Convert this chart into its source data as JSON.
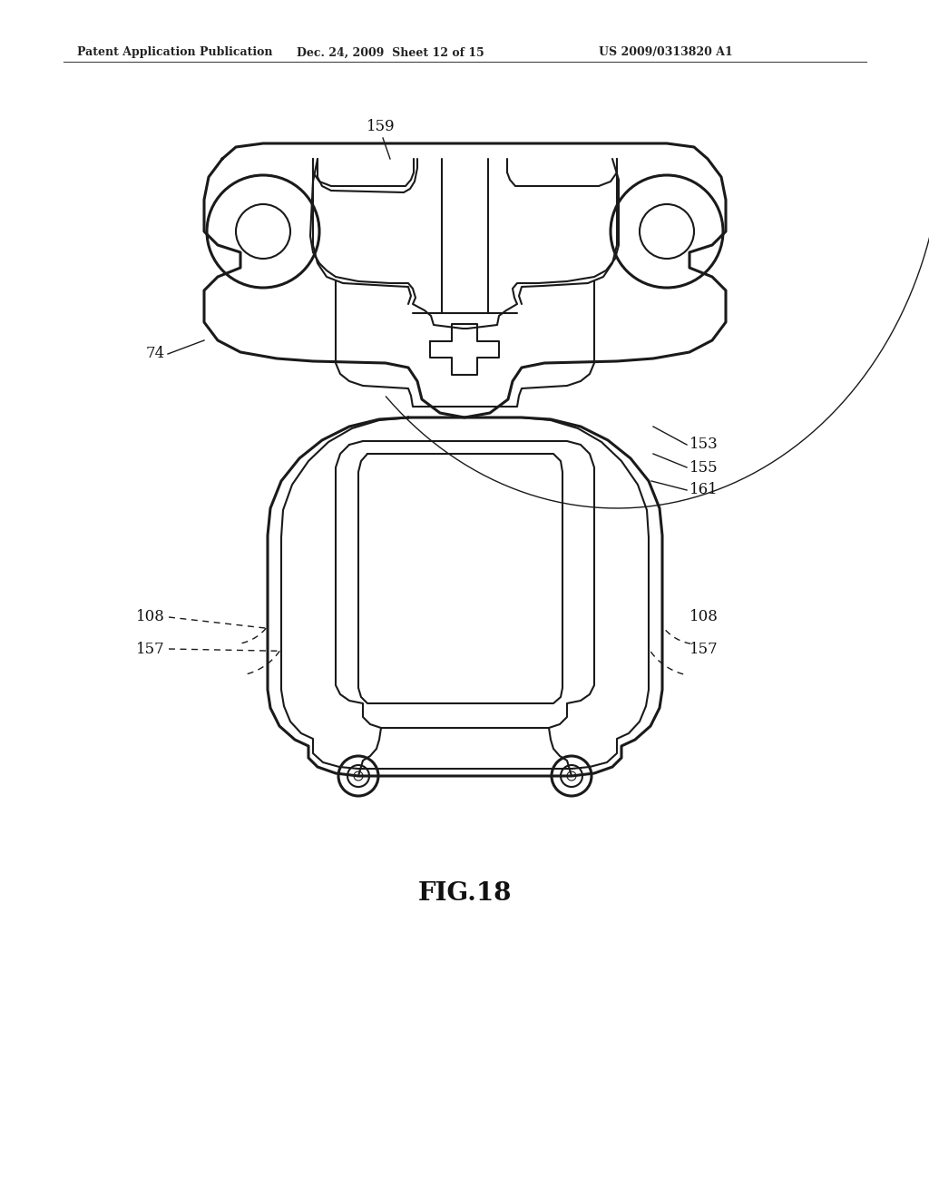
{
  "bg_color": "#ffffff",
  "line_color": "#1a1a1a",
  "header_left": "Patent Application Publication",
  "header_mid": "Dec. 24, 2009  Sheet 12 of 15",
  "header_right": "US 2009/0313820 A1",
  "fig_label": "FIG.18",
  "lw_outer": 2.2,
  "lw_inner": 1.5,
  "lw_thin": 1.0,
  "label_fs": 12
}
